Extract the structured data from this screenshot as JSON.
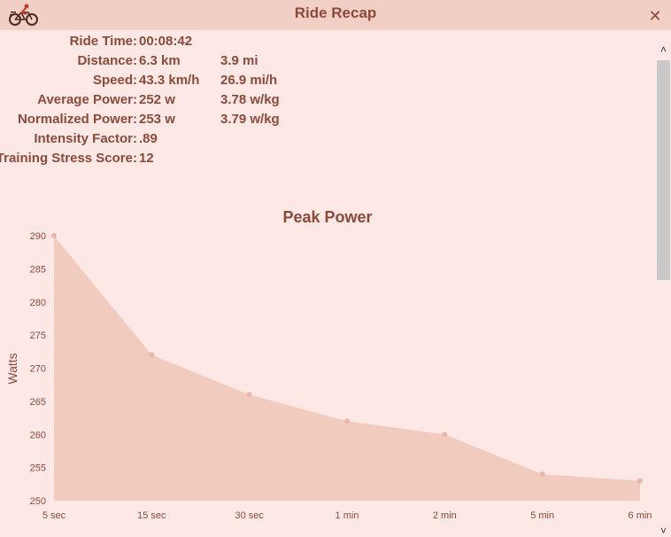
{
  "window": {
    "title": "Ride Recap",
    "app_icon": "cyclist-icon",
    "close_icon": "close-icon"
  },
  "stats": [
    {
      "label": "Ride Time:",
      "value": "00:08:42",
      "value2": ""
    },
    {
      "label": "Distance:",
      "value": "6.3 km",
      "value2": "3.9 mi"
    },
    {
      "label": "Speed:",
      "value": "43.3 km/h",
      "value2": "26.9 mi/h"
    },
    {
      "label": "Average Power:",
      "value": "252 w",
      "value2": "3.78 w/kg"
    },
    {
      "label": "Normalized Power:",
      "value": "253 w",
      "value2": "3.79 w/kg"
    },
    {
      "label": "Intensity Factor:",
      "value": ".89",
      "value2": ""
    },
    {
      "label": "Training Stress Score:",
      "value": "12",
      "value2": ""
    }
  ],
  "scrollbar": {
    "up_icon": "chevron-up-icon",
    "down_icon": "chevron-down-icon"
  },
  "colors": {
    "background": "#fde8e6",
    "titlebar": "#f2cfc5",
    "accent": "#8b4a3a",
    "area_fill": "#f2cbbf",
    "point": "#e8b7a9"
  },
  "chart_data": {
    "type": "area",
    "title": "Peak Power",
    "xlabel": "",
    "ylabel": "Watts",
    "categories": [
      "5 sec",
      "15 sec",
      "30 sec",
      "1 min",
      "2 min",
      "5 min",
      "6 min"
    ],
    "series": [
      {
        "values": [
          290,
          272,
          266,
          262,
          260,
          254,
          253
        ]
      }
    ],
    "ylim": [
      250,
      290
    ],
    "yticks": [
      250,
      255,
      260,
      265,
      270,
      275,
      280,
      285,
      290
    ],
    "grid": false
  }
}
